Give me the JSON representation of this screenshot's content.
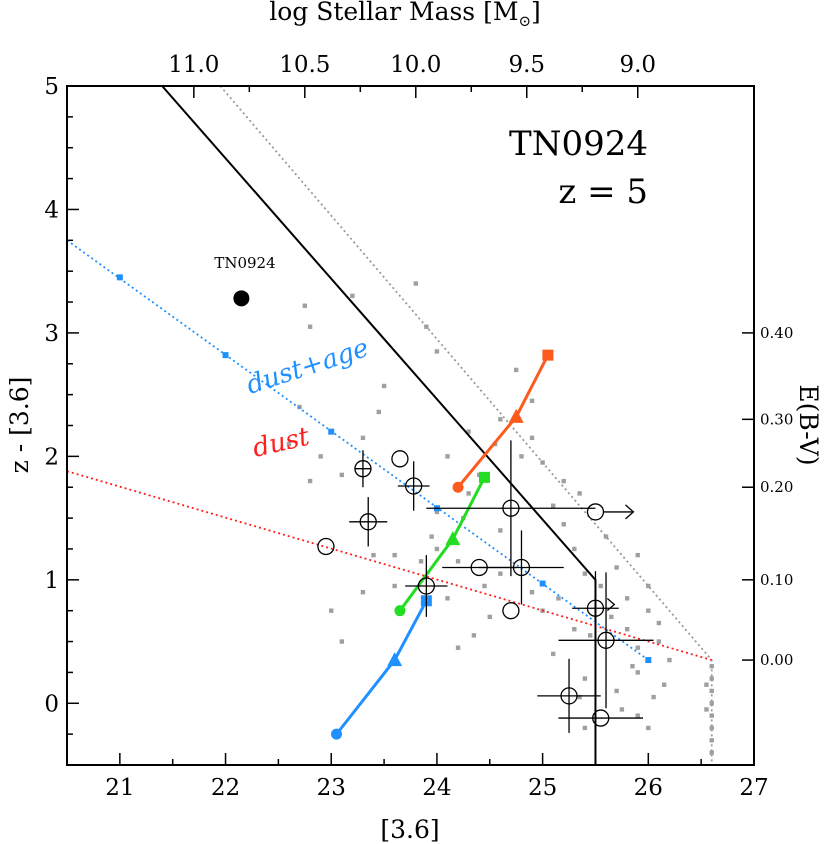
{
  "chart_data": {
    "type": "scatter",
    "title": "TN0924",
    "subtitle": "z = 5",
    "xlabel": "[3.6]",
    "ylabel": "z - [3.6]",
    "xlim": [
      20.5,
      27.0
    ],
    "ylim": [
      -0.5,
      5.0
    ],
    "xticks": [
      21,
      22,
      23,
      24,
      25,
      26,
      27
    ],
    "yticks": [
      0,
      1,
      2,
      3,
      4,
      5
    ],
    "top_axis": {
      "label": "log Stellar Mass [M",
      "label_sub": "⊙",
      "label_close": "]",
      "ticks": [
        {
          "label": "11.0",
          "x": 21.7
        },
        {
          "label": "10.5",
          "x": 22.75
        },
        {
          "label": "10.0",
          "x": 23.8
        },
        {
          "label": "9.5",
          "x": 24.85
        },
        {
          "label": "9.0",
          "x": 25.9
        }
      ]
    },
    "right_axis": {
      "label": "E(B-V)",
      "ticks": [
        {
          "label": "0.00",
          "y": 0.35
        },
        {
          "label": "0.10",
          "y": 1.0
        },
        {
          "label": "0.20",
          "y": 1.75
        },
        {
          "label": "0.30",
          "y": 2.3
        },
        {
          "label": "0.40",
          "y": 3.0
        }
      ]
    },
    "target": {
      "name": "TN0924",
      "x": 22.15,
      "y": 3.28
    },
    "lines": [
      {
        "name": "selection-limit",
        "color": "#000000",
        "style": "solid",
        "points": [
          [
            21.4,
            5.0
          ],
          [
            25.5,
            1.0
          ],
          [
            25.5,
            -0.5
          ]
        ]
      },
      {
        "name": "limit-offset",
        "color": "#999999",
        "style": "dotted",
        "points": [
          [
            21.95,
            5.0
          ],
          [
            26.6,
            0.35
          ],
          [
            26.6,
            -0.5
          ]
        ]
      },
      {
        "name": "dust+age",
        "label": "dust+age",
        "color": "#1e90ff",
        "style": "dotted",
        "points": [
          [
            20.5,
            3.75
          ],
          [
            26.0,
            0.35
          ]
        ],
        "markers": [
          [
            21.0,
            3.45
          ],
          [
            22.0,
            2.82
          ],
          [
            23.0,
            2.2
          ],
          [
            24.0,
            1.58
          ],
          [
            25.0,
            0.97
          ],
          [
            26.0,
            0.35
          ]
        ]
      },
      {
        "name": "dust",
        "label": "dust",
        "color": "#ff1e1e",
        "style": "dotted",
        "points": [
          [
            20.5,
            1.88
          ],
          [
            26.6,
            0.35
          ]
        ]
      }
    ],
    "tracks": [
      {
        "name": "orange-track",
        "color": "#ff5a1e",
        "points": [
          [
            24.2,
            1.75
          ],
          [
            24.75,
            2.32
          ],
          [
            25.05,
            2.82
          ]
        ],
        "markers": [
          "circle",
          "triangle",
          "square"
        ]
      },
      {
        "name": "green-track",
        "color": "#22dd22",
        "points": [
          [
            23.65,
            0.75
          ],
          [
            24.15,
            1.33
          ],
          [
            24.45,
            1.83
          ]
        ],
        "markers": [
          "circle",
          "triangle",
          "square"
        ]
      },
      {
        "name": "blue-track",
        "color": "#1e90ff",
        "points": [
          [
            23.05,
            -0.25
          ],
          [
            23.6,
            0.35
          ],
          [
            23.9,
            0.83
          ]
        ],
        "markers": [
          "circle",
          "triangle",
          "square"
        ]
      }
    ],
    "detections": [
      {
        "x": 23.3,
        "y": 1.9,
        "xerr": 0.08,
        "yerr": 0.15
      },
      {
        "x": 23.65,
        "y": 1.98,
        "xerr": 0,
        "yerr": 0
      },
      {
        "x": 23.78,
        "y": 1.76,
        "xerr": 0.15,
        "yerr": 0.2
      },
      {
        "x": 23.35,
        "y": 1.47,
        "xerr": 0.18,
        "yerr": 0.2
      },
      {
        "x": 22.95,
        "y": 1.27,
        "xerr": 0,
        "yerr": 0
      },
      {
        "x": 23.9,
        "y": 0.95,
        "xerr": 0.2,
        "yerr": 0.25
      },
      {
        "x": 24.4,
        "y": 1.1,
        "xerr": 0.35,
        "yerr": 0
      },
      {
        "x": 24.7,
        "y": 1.58,
        "xerr": 0.8,
        "yerr": 0.55
      },
      {
        "x": 24.8,
        "y": 1.1,
        "xerr": 0.4,
        "yerr": 0.3
      },
      {
        "x": 24.7,
        "y": 0.75,
        "xerr": 0,
        "yerr": 0
      },
      {
        "x": 25.5,
        "y": 0.77,
        "xerr": 0.22,
        "yerr": 0.3
      },
      {
        "x": 25.6,
        "y": 0.51,
        "xerr": 0.45,
        "yerr": 0.55
      },
      {
        "x": 25.25,
        "y": 0.06,
        "xerr": 0.3,
        "yerr": 0.3
      },
      {
        "x": 25.55,
        "y": -0.12,
        "xerr": 0.4,
        "yerr": 0
      }
    ],
    "upper_limits": [
      {
        "x": 25.5,
        "y": 1.55,
        "direction": "right"
      },
      {
        "x": 25.65,
        "y": 0.8,
        "direction": "right-small"
      }
    ],
    "background": [
      [
        22.75,
        3.22
      ],
      [
        22.8,
        3.05
      ],
      [
        23.2,
        3.3
      ],
      [
        23.8,
        3.4
      ],
      [
        24.0,
        2.85
      ],
      [
        23.9,
        3.05
      ],
      [
        23.5,
        2.57
      ],
      [
        23.45,
        2.36
      ],
      [
        23.3,
        2.15
      ],
      [
        22.7,
        2.4
      ],
      [
        22.9,
        2.0
      ],
      [
        23.1,
        1.85
      ],
      [
        24.1,
        2.0
      ],
      [
        24.3,
        2.2
      ],
      [
        24.6,
        2.3
      ],
      [
        24.55,
        2.1
      ],
      [
        24.8,
        2.0
      ],
      [
        24.9,
        2.15
      ],
      [
        25.0,
        1.95
      ],
      [
        25.2,
        1.8
      ],
      [
        24.4,
        1.85
      ],
      [
        24.3,
        1.7
      ],
      [
        24.0,
        1.55
      ],
      [
        23.95,
        1.35
      ],
      [
        24.25,
        1.5
      ],
      [
        24.6,
        1.4
      ],
      [
        25.1,
        1.6
      ],
      [
        25.2,
        1.45
      ],
      [
        25.35,
        1.7
      ],
      [
        25.3,
        1.25
      ],
      [
        25.4,
        1.05
      ],
      [
        25.6,
        1.35
      ],
      [
        25.7,
        1.1
      ],
      [
        25.9,
        1.2
      ],
      [
        26.0,
        0.95
      ],
      [
        23.4,
        1.2
      ],
      [
        23.6,
        1.2
      ],
      [
        23.85,
        1.15
      ],
      [
        24.0,
        1.25
      ],
      [
        24.2,
        1.15
      ],
      [
        24.45,
        0.95
      ],
      [
        24.6,
        1.05
      ],
      [
        24.9,
        0.9
      ],
      [
        25.0,
        0.75
      ],
      [
        25.15,
        0.85
      ],
      [
        25.3,
        0.6
      ],
      [
        25.45,
        0.55
      ],
      [
        25.65,
        0.7
      ],
      [
        25.8,
        0.6
      ],
      [
        25.9,
        0.45
      ],
      [
        26.1,
        0.5
      ],
      [
        26.2,
        0.35
      ],
      [
        26.15,
        0.15
      ],
      [
        26.05,
        0.05
      ],
      [
        25.9,
        0.25
      ],
      [
        25.7,
        0.1
      ],
      [
        25.75,
        -0.05
      ],
      [
        25.85,
        0.3
      ],
      [
        25.4,
        0.2
      ],
      [
        25.35,
        0.05
      ],
      [
        25.4,
        -0.2
      ],
      [
        25.9,
        -0.1
      ],
      [
        26.0,
        -0.2
      ],
      [
        23.0,
        0.75
      ],
      [
        23.3,
        0.9
      ],
      [
        23.6,
        0.95
      ],
      [
        24.1,
        0.85
      ],
      [
        24.2,
        0.45
      ],
      [
        24.5,
        0.7
      ],
      [
        24.35,
        0.55
      ],
      [
        23.1,
        0.5
      ],
      [
        22.6,
        2.1
      ],
      [
        22.8,
        1.8
      ],
      [
        24.9,
        2.45
      ],
      [
        24.75,
        2.7
      ],
      [
        25.1,
        0.4
      ],
      [
        25.55,
        0.95
      ],
      [
        25.8,
        0.85
      ],
      [
        26.0,
        0.75
      ],
      [
        26.1,
        0.65
      ],
      [
        26.6,
        0.3
      ],
      [
        26.6,
        0.2
      ],
      [
        26.6,
        0.1
      ],
      [
        26.6,
        0.0
      ],
      [
        26.6,
        -0.1
      ],
      [
        26.6,
        -0.2
      ],
      [
        26.6,
        -0.3
      ],
      [
        26.6,
        -0.4
      ],
      [
        26.55,
        0.15
      ],
      [
        26.55,
        -0.05
      ]
    ]
  }
}
